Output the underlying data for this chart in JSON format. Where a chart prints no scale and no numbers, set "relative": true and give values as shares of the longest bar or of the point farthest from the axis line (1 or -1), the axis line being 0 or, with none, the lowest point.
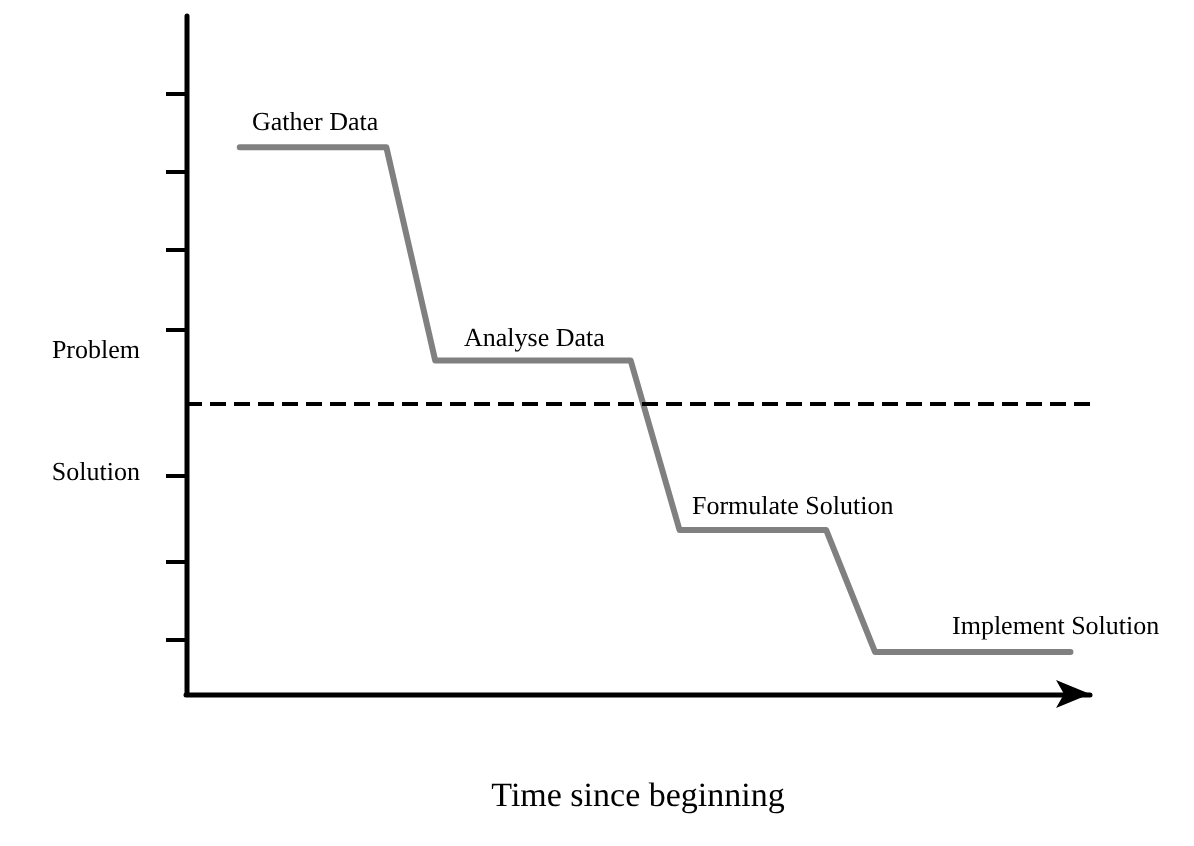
{
  "chart_data": {
    "type": "line",
    "relative": true,
    "xlabel": "Time since beginning",
    "categories": [
      null,
      null,
      null,
      null,
      null,
      null,
      null,
      null,
      null,
      null,
      null,
      null,
      null,
      null,
      null,
      null,
      null,
      null
    ],
    "series": [
      {
        "color": "#808080",
        "values": [
          1,
          1,
          1,
          1,
          0.61,
          0.61,
          0.61,
          0.61,
          0.61,
          0.3,
          0.3,
          0.3,
          0.3,
          0.077,
          0.077,
          0.077,
          0.077,
          0.077
        ]
      }
    ],
    "ref_lines": [
      {
        "axis": "y",
        "value": 0.53,
        "color": "#000000",
        "line_style": "dashed"
      }
    ],
    "annotations": [
      "Gather Data",
      "Analyse Data",
      "Formulate Solution",
      "Implement Solution",
      "Problem",
      "Solution"
    ],
    "marker": "none",
    "line_style": "solid",
    "grid": false
  }
}
